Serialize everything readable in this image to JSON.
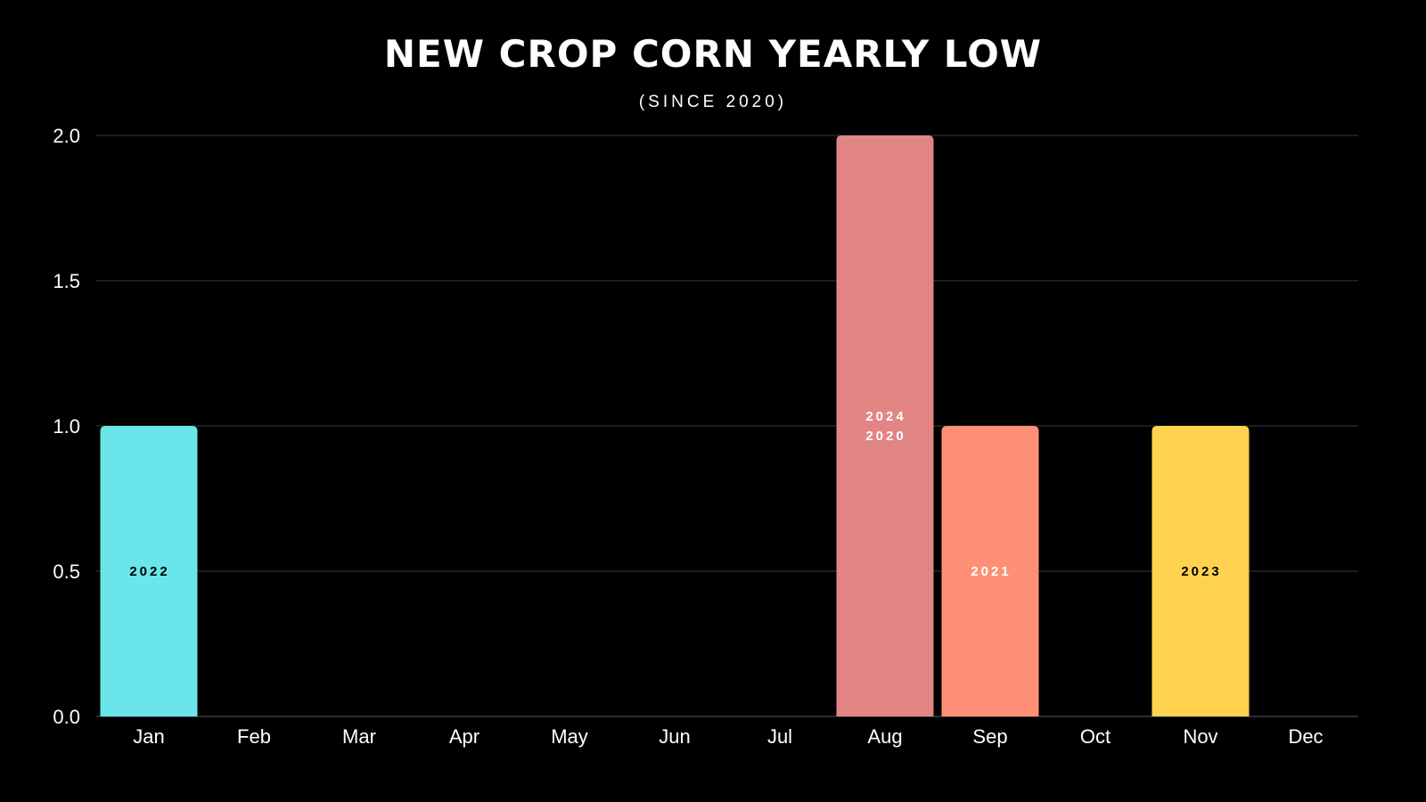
{
  "chart_data": {
    "type": "bar",
    "title": "NEW CROP CORN YEARLY LOW",
    "subtitle": "(SINCE 2020)",
    "xlabel": "",
    "ylabel": "",
    "categories": [
      "Jan",
      "Feb",
      "Mar",
      "Apr",
      "May",
      "Jun",
      "Jul",
      "Aug",
      "Sep",
      "Oct",
      "Nov",
      "Dec"
    ],
    "values": [
      1,
      0,
      0,
      0,
      0,
      0,
      0,
      2,
      1,
      0,
      1,
      0
    ],
    "bar_labels": [
      [
        "2022"
      ],
      [],
      [],
      [],
      [],
      [],
      [],
      [
        "2024",
        "2020"
      ],
      [
        "2021"
      ],
      [],
      [
        "2023"
      ],
      []
    ],
    "bar_colors": [
      "#6ae6ea",
      "",
      "",
      "",
      "",
      "",
      "",
      "#e28585",
      "#ff9075",
      "",
      "#ffd24f",
      ""
    ],
    "bar_label_colors": [
      "#000000",
      "",
      "",
      "",
      "",
      "",
      "",
      "#ffffff",
      "#ffffff",
      "",
      "#000000",
      ""
    ],
    "ylim": [
      0,
      2.0
    ],
    "yticks": [
      "0.0",
      "0.5",
      "1.0",
      "1.5",
      "2.0"
    ],
    "ytick_values": [
      0,
      0.5,
      1.0,
      1.5,
      2.0
    ],
    "grid": true,
    "legend": "none"
  }
}
